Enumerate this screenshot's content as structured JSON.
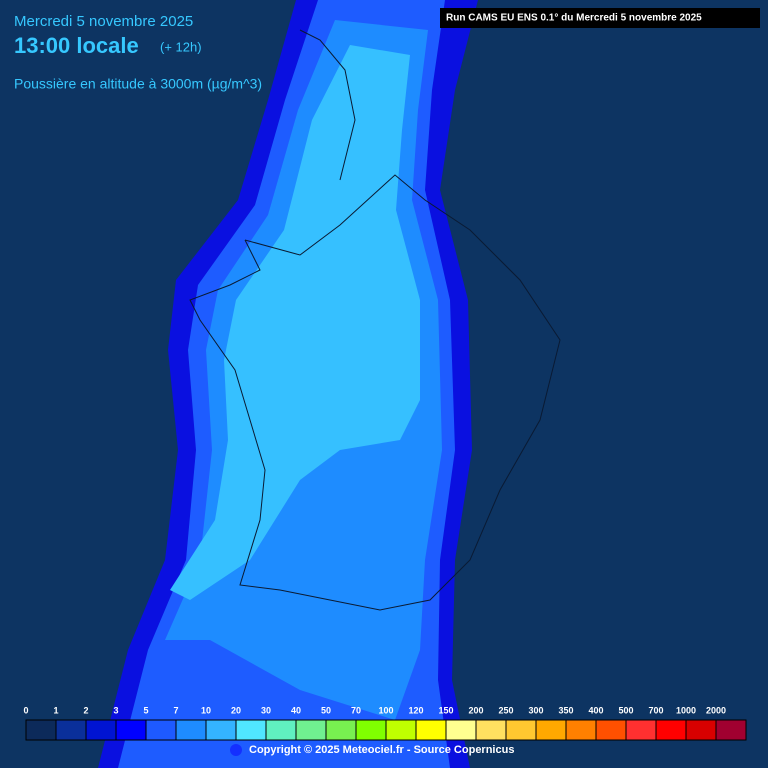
{
  "header": {
    "date": "Mercredi 5 novembre 2025",
    "time": "13:00 locale",
    "offset": "(+ 12h)",
    "variable": "Poussière en altitude à 3000m (µg/m^3)",
    "run": "Run CAMS EU ENS 0.1° du Mercredi 5 novembre 2025"
  },
  "legend": {
    "ticks": [
      0,
      1,
      2,
      3,
      5,
      7,
      10,
      20,
      30,
      40,
      50,
      70,
      100,
      120,
      150,
      200,
      250,
      300,
      350,
      400,
      500,
      700,
      1000,
      2000
    ],
    "colors": [
      "#0c2a5a",
      "#0a2f9a",
      "#0014d2",
      "#0000ff",
      "#1e5aff",
      "#1e8cff",
      "#34b4ff",
      "#50e6ff",
      "#60f0c0",
      "#70f090",
      "#78f050",
      "#80ff00",
      "#c0ff00",
      "#ffff00",
      "#ffff90",
      "#ffe060",
      "#ffc830",
      "#ffa800",
      "#ff8000",
      "#ff5000",
      "#ff3030",
      "#ff0000",
      "#d80000",
      "#a00030"
    ]
  },
  "footer": {
    "copyright": "Copyright © 2025 Meteociel.fr - Source Copernicus"
  }
}
